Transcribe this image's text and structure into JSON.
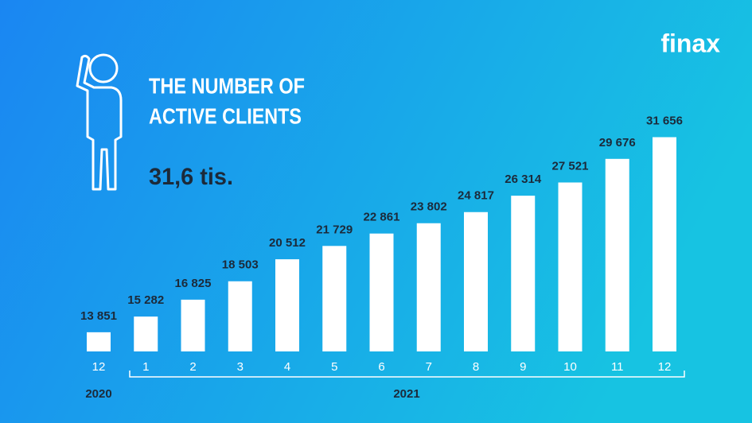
{
  "chart_data": {
    "type": "bar",
    "title_lines": [
      "THE NUMBER OF",
      "ACTIVE CLIENTS"
    ],
    "subtitle": "31,6 tis.",
    "logo": "finax",
    "categories": [
      "12",
      "1",
      "2",
      "3",
      "4",
      "5",
      "6",
      "7",
      "8",
      "9",
      "10",
      "11",
      "12"
    ],
    "values": [
      13851,
      15282,
      16825,
      18503,
      20512,
      21729,
      22861,
      23802,
      24817,
      26314,
      27521,
      29676,
      31656
    ],
    "value_labels": [
      "13 851",
      "15 282",
      "16 825",
      "18 503",
      "20 512",
      "21 729",
      "22 861",
      "23 802",
      "24 817",
      "26 314",
      "27 521",
      "29 676",
      "31 656"
    ],
    "year_labels": [
      "2020",
      "2021"
    ],
    "color": "#ffffff",
    "ylim": [
      12100,
      33000
    ]
  }
}
